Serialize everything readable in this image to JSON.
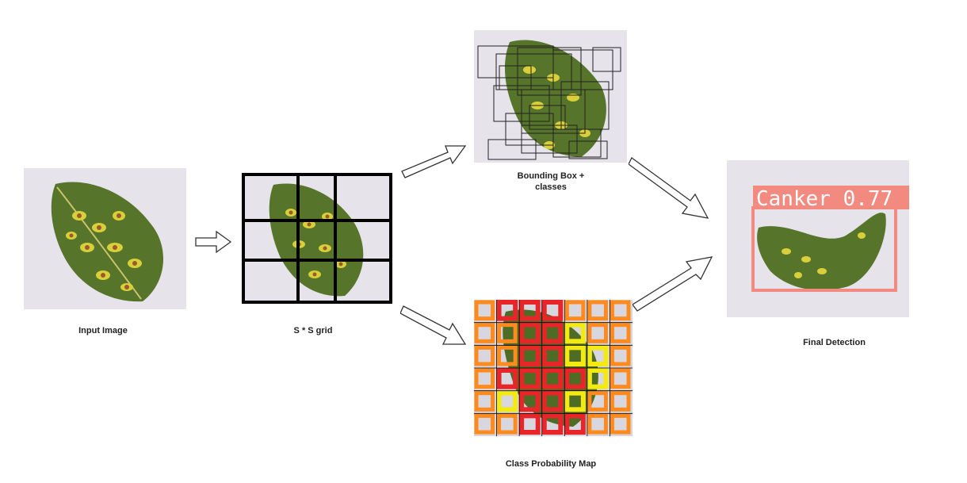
{
  "captions": {
    "input": "Input Image",
    "grid": "S * S grid",
    "bbox_line1": "Bounding Box +",
    "bbox_line2": "classes",
    "probmap": "Class Probability Map",
    "final": "Final Detection"
  },
  "detection": {
    "label": "Canker 0.77",
    "box_color": "#f28a80"
  },
  "colors": {
    "background": "#ffffff",
    "photo_bg": "#e6e3ea",
    "leaf_dark": "#3f5f1e",
    "leaf_mid": "#6e8b2c",
    "spot": "#9a5a2a",
    "halo": "#d9cf3a",
    "grid_line": "#000000",
    "prob_high": "#e8262a",
    "prob_mid": "#ff8a1e",
    "prob_low": "#f2ea10"
  }
}
